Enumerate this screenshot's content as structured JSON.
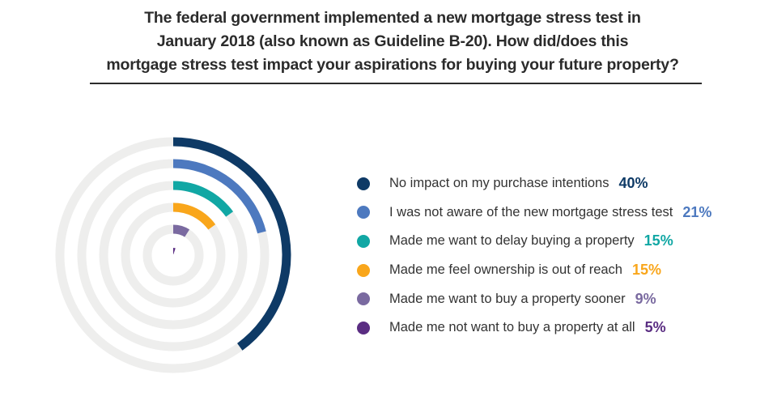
{
  "chart_data": {
    "type": "radial-bar",
    "title": "The federal government implemented a new mortgage stress test in January 2018 (also known as Guideline B-20). How did/does this mortgage stress test impact your aspirations for buying your future property?",
    "title_lines": [
      "The federal government implemented a new mortgage stress test in",
      "January 2018 (also known as Guideline B-20). How did/does this",
      "mortgage stress test impact your aspirations for buying your future property?"
    ],
    "categories": [
      "No impact on my purchase intentions",
      "I was not aware of the new mortgage stress test",
      "Made me want to delay buying a property",
      "Made me feel ownership is out of reach",
      "Made me want to buy a property sooner",
      "Made me not want to buy a property at all"
    ],
    "values": [
      40,
      21,
      15,
      15,
      9,
      5
    ],
    "value_labels": [
      "40%",
      "21%",
      "15%",
      "15%",
      "9%",
      "5%"
    ],
    "colors": [
      "#0e3a66",
      "#4d79bf",
      "#11a7a4",
      "#f9a61b",
      "#7a6aa0",
      "#5a2d82"
    ],
    "track_color": "#eeeeed",
    "legend_position": "right",
    "grid": false
  }
}
